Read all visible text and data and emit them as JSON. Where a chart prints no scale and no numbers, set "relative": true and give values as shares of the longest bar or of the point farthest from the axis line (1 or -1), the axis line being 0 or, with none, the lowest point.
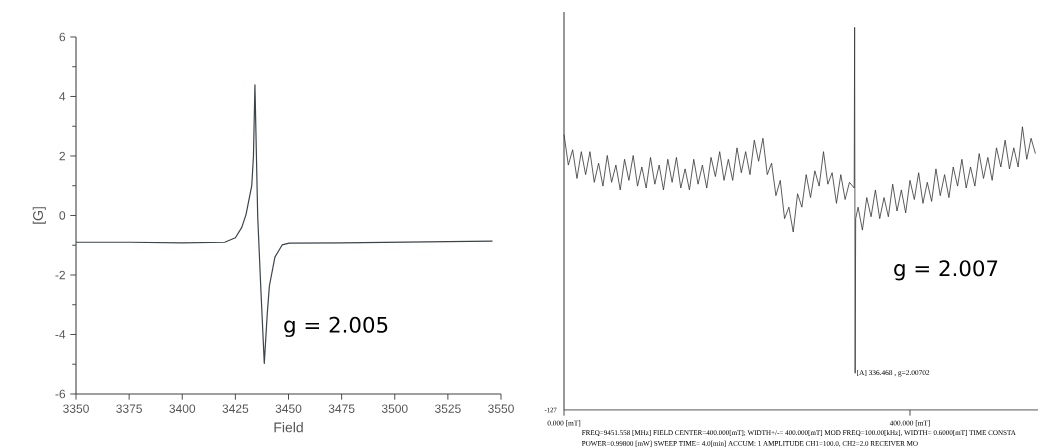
{
  "chart_data": [
    {
      "type": "line",
      "xlabel": "Field",
      "ylabel": "[G]",
      "xlim": [
        3350,
        3550
      ],
      "ylim": [
        -6,
        6
      ],
      "xticks": [
        3350,
        3375,
        3400,
        3425,
        3450,
        3475,
        3500,
        3525,
        3550
      ],
      "yticks": [
        -6,
        -4,
        -2,
        0,
        2,
        4,
        6
      ],
      "annotations": [
        "g = 2.005"
      ],
      "series": [
        {
          "color": "#3c4449",
          "x": [
            3350,
            3375,
            3400,
            3420,
            3425,
            3428,
            3430,
            3432.7,
            3433.5,
            3434.2,
            3435.5,
            3437,
            3438.6,
            3440,
            3441,
            3443.6,
            3447,
            3450.3,
            3475,
            3500,
            3525,
            3546
          ],
          "values": [
            -0.9,
            -0.9,
            -0.92,
            -0.9,
            -0.75,
            -0.4,
            0.03,
            1.0,
            2.0,
            4.39,
            -0.03,
            -2.5,
            -4.97,
            -3.3,
            -2.37,
            -1.4,
            -0.99,
            -0.93,
            -0.92,
            -0.9,
            -0.88,
            -0.86
          ]
        }
      ]
    },
    {
      "type": "line",
      "relative": true,
      "xlim": [
        0,
        548
      ],
      "xticks": [
        {
          "value": 0,
          "label": "0.000 [mT]"
        },
        {
          "value": 400,
          "label": "400.000 [mT]"
        }
      ],
      "annotations": [
        {
          "text": "[A] 336.468 , g=2.00702",
          "x": 336.468,
          "y": 0.096
        },
        "g = 2.007",
        "-127",
        "FREQ=9451.558 [MHz]   FIELD CENTER=400.000[mT]; WIDTH+/-= 400.000[mT]   MOD FREQ=100.00[kHz], WIDTH= 0.6000[mT]   TIME CONSTA",
        "POWER=0.99800 [mW]   SWEEP TIME= 4.0[min]   ACCUM: 1                    AMPLITUDE CH1=100.0, CH2=2.0                    RECEIVER MO"
      ],
      "series": [
        {
          "color": "#333333",
          "x": [
            0,
            5,
            10,
            15,
            20,
            25,
            30,
            35,
            40,
            45,
            50,
            55,
            60,
            65,
            70,
            75,
            80,
            85,
            90,
            95,
            100,
            105,
            110,
            115,
            120,
            125,
            130,
            135,
            140,
            145,
            150,
            155,
            160,
            165,
            170,
            175,
            180,
            185,
            190,
            195,
            200,
            205,
            210,
            215,
            220,
            225,
            230,
            235,
            240,
            245,
            250,
            255,
            260,
            265,
            270,
            275,
            280,
            285,
            290,
            295,
            300,
            305,
            310,
            315,
            320,
            325,
            330,
            335.5,
            336.0,
            336.6,
            337.2,
            340,
            345,
            350,
            355,
            360,
            365,
            370,
            375,
            380,
            385,
            390,
            395,
            400,
            405,
            410,
            415,
            420,
            425,
            430,
            435,
            440,
            445,
            450,
            455,
            460,
            465,
            470,
            475,
            480,
            485,
            490,
            495,
            500,
            505,
            510,
            515,
            520,
            525,
            530,
            535,
            540,
            545
          ],
          "values": [
            0.72,
            0.64,
            0.68,
            0.605,
            0.675,
            0.615,
            0.675,
            0.595,
            0.645,
            0.585,
            0.665,
            0.595,
            0.64,
            0.575,
            0.655,
            0.6,
            0.665,
            0.585,
            0.635,
            0.58,
            0.66,
            0.59,
            0.64,
            0.575,
            0.655,
            0.595,
            0.66,
            0.58,
            0.63,
            0.575,
            0.655,
            0.59,
            0.64,
            0.58,
            0.66,
            0.61,
            0.675,
            0.6,
            0.655,
            0.6,
            0.685,
            0.62,
            0.675,
            0.615,
            0.705,
            0.65,
            0.71,
            0.615,
            0.645,
            0.56,
            0.6,
            0.5,
            0.53,
            0.465,
            0.565,
            0.53,
            0.615,
            0.555,
            0.625,
            0.585,
            0.675,
            0.59,
            0.62,
            0.54,
            0.615,
            0.55,
            0.595,
            0.58,
            1.0,
            0.096,
            0.5,
            0.53,
            0.47,
            0.555,
            0.505,
            0.575,
            0.5,
            0.555,
            0.505,
            0.59,
            0.52,
            0.575,
            0.515,
            0.6,
            0.55,
            0.62,
            0.54,
            0.595,
            0.545,
            0.63,
            0.56,
            0.615,
            0.555,
            0.635,
            0.585,
            0.655,
            0.58,
            0.635,
            0.585,
            0.67,
            0.605,
            0.66,
            0.6,
            0.685,
            0.635,
            0.705,
            0.63,
            0.685,
            0.635,
            0.74,
            0.655,
            0.71,
            0.67
          ]
        }
      ]
    }
  ]
}
